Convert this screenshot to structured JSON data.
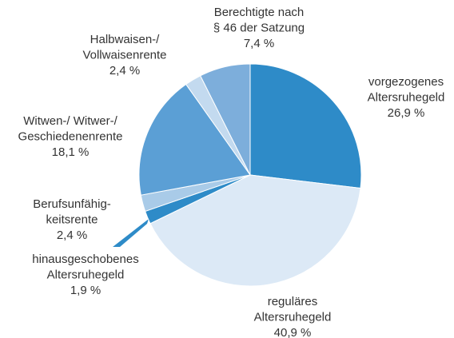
{
  "chart_data": {
    "type": "pie",
    "categories": [
      [
        "vorgezogenes",
        "Altersruhegeld"
      ],
      [
        "reguläres",
        "Altersruhegeld"
      ],
      [
        "hinausgeschobenes",
        "Altersruhegeld"
      ],
      [
        "Berufsunfähig-",
        "keitsrente"
      ],
      [
        "Witwen-/ Witwer-/",
        "Geschiedenenrente"
      ],
      [
        "Halbwaisen-/",
        "Vollwaisenrente"
      ],
      [
        "Berechtigte nach",
        "§ 46 der Satzung"
      ]
    ],
    "values": [
      26.9,
      40.9,
      1.9,
      2.4,
      18.1,
      2.4,
      7.4
    ],
    "value_labels": [
      "26,9 %",
      "40,9 %",
      "1,9 %",
      "2,4 %",
      "18,1 %",
      "2,4 %",
      "7,4 %"
    ],
    "colors": [
      "#2e8bc8",
      "#dce9f6",
      "#2e8bc8",
      "#a9cbe8",
      "#5b9fd5",
      "#c3daef",
      "#7daedb"
    ]
  }
}
